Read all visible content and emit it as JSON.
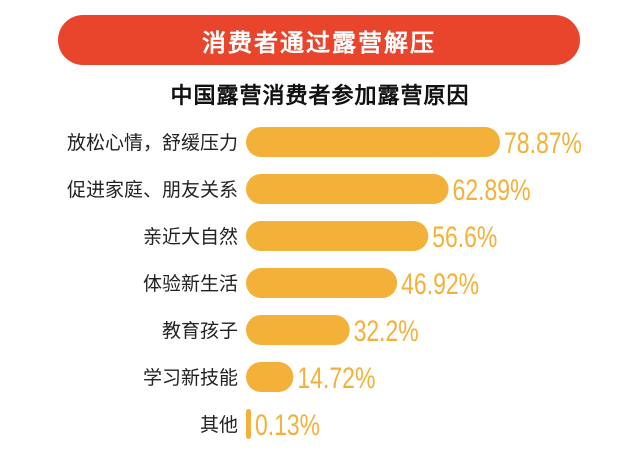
{
  "header": {
    "banner_title": "消费者通过露营解压",
    "subtitle": "中国露营消费者参加露营原因"
  },
  "colors": {
    "banner": "#e8452c",
    "bar": "#f4b13a",
    "value_text": "#f4b13a",
    "label_text": "#222222"
  },
  "chart_data": {
    "type": "bar",
    "orientation": "horizontal",
    "title": "中国露营消费者参加露营原因",
    "categories": [
      "放松心情，舒缓压力",
      "促进家庭、朋友关系",
      "亲近大自然",
      "体验新生活",
      "教育孩子",
      "学习新技能",
      "其他"
    ],
    "values": [
      78.87,
      62.89,
      56.6,
      46.92,
      32.2,
      14.72,
      0.13
    ],
    "value_labels": [
      "78.87%",
      "62.89%",
      "56.6%",
      "46.92%",
      "32.2%",
      "14.72%",
      "0.13%"
    ],
    "xlim": [
      0,
      78.87
    ],
    "grid": false,
    "legend": "none"
  }
}
